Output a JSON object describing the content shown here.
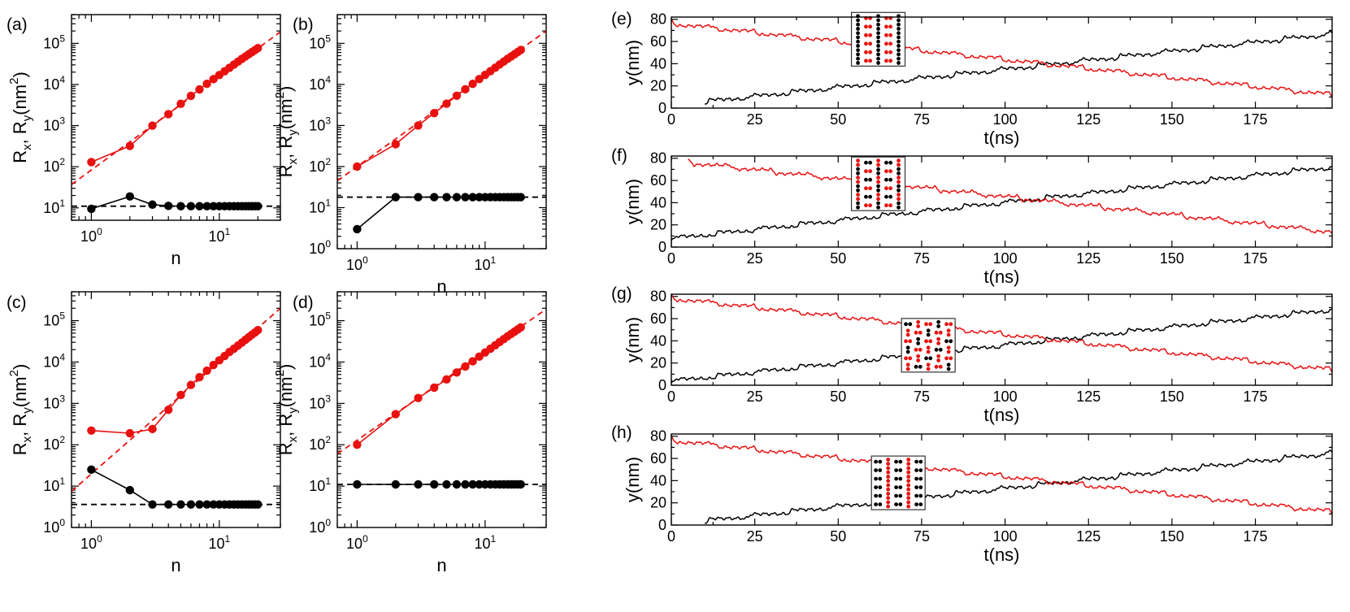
{
  "figure": {
    "colors": {
      "red": "#e8110f",
      "black": "#000000",
      "frame": "#000000"
    }
  },
  "chart_data": [
    {
      "id": "a",
      "tag": "(a)",
      "type": "line",
      "scale": "log-log",
      "xlabel": "n",
      "ylabel_main": "R",
      "ylabel_sub1": "x",
      "ylabel_sep": ", R",
      "ylabel_sub2": "y",
      "ylabel_unit": "(nm",
      "ylabel_exp": "2",
      "ylabel_close": ")",
      "xlim": [
        0.7,
        30
      ],
      "ylim": [
        5,
        500000
      ],
      "xticks": [
        {
          "value": 1,
          "base": "10",
          "exp": "0"
        },
        {
          "value": 10,
          "base": "10",
          "exp": "1"
        }
      ],
      "yticks": [
        {
          "value": 10,
          "base": "10",
          "exp": "1"
        },
        {
          "value": 100,
          "base": "10",
          "exp": "2"
        },
        {
          "value": 1000,
          "base": "10",
          "exp": "3"
        },
        {
          "value": 10000,
          "base": "10",
          "exp": "4"
        },
        {
          "value": 100000,
          "base": "10",
          "exp": "5"
        }
      ],
      "series": [
        {
          "name": "R_x",
          "color": "red",
          "x": [
            1,
            2,
            3,
            4,
            5,
            6,
            7,
            8,
            9,
            10,
            11,
            12,
            13,
            14,
            15,
            16,
            17,
            18,
            19,
            20
          ],
          "y": [
            130,
            320,
            1000,
            1900,
            3400,
            5300,
            7600,
            10400,
            13500,
            17000,
            21000,
            25500,
            30500,
            36000,
            42000,
            48000,
            54500,
            61500,
            69000,
            76500
          ]
        },
        {
          "name": "R_y",
          "color": "black",
          "x": [
            1,
            2,
            3,
            4,
            5,
            6,
            7,
            8,
            9,
            10,
            11,
            12,
            13,
            14,
            15,
            16,
            17,
            18,
            19,
            20
          ],
          "y": [
            9.5,
            19,
            12,
            11.2,
            11,
            11,
            11,
            11,
            11,
            11,
            11,
            11,
            11,
            11,
            11,
            11,
            11,
            11,
            11,
            11
          ]
        }
      ],
      "fits": [
        {
          "name": "fit-red",
          "color": "red",
          "x": [
            0.7,
            30
          ],
          "y": [
            37,
            190000
          ]
        },
        {
          "name": "fit-black",
          "color": "black",
          "x": [
            0.7,
            30
          ],
          "y": [
            11,
            11
          ]
        }
      ]
    },
    {
      "id": "b",
      "tag": "(b)",
      "type": "line",
      "scale": "log-log",
      "xlabel": "n",
      "ylabel_main": "R",
      "ylabel_sub1": "x",
      "ylabel_sep": ", R",
      "ylabel_sub2": "y",
      "ylabel_unit": "(nm",
      "ylabel_exp": "2",
      "ylabel_close": ")",
      "xlim": [
        0.7,
        30
      ],
      "ylim": [
        1,
        500000
      ],
      "xticks": [
        {
          "value": 1,
          "base": "10",
          "exp": "0"
        },
        {
          "value": 10,
          "base": "10",
          "exp": "1"
        }
      ],
      "yticks": [
        {
          "value": 1,
          "base": "10",
          "exp": "0"
        },
        {
          "value": 10,
          "base": "10",
          "exp": "1"
        },
        {
          "value": 100,
          "base": "10",
          "exp": "2"
        },
        {
          "value": 1000,
          "base": "10",
          "exp": "3"
        },
        {
          "value": 10000,
          "base": "10",
          "exp": "4"
        },
        {
          "value": 100000,
          "base": "10",
          "exp": "5"
        }
      ],
      "series": [
        {
          "name": "R_x",
          "color": "red",
          "x": [
            1,
            2,
            3,
            4,
            5,
            6,
            7,
            8,
            9,
            10,
            11,
            12,
            13,
            14,
            15,
            16,
            17,
            18,
            19
          ],
          "y": [
            100,
            350,
            1000,
            2000,
            3400,
            5300,
            7600,
            10300,
            13500,
            17000,
            21000,
            25500,
            30500,
            36000,
            42000,
            48000,
            54500,
            61500,
            69000
          ]
        },
        {
          "name": "R_y",
          "color": "black",
          "x": [
            1,
            2,
            3,
            4,
            5,
            6,
            7,
            8,
            9,
            10,
            11,
            12,
            13,
            14,
            15,
            16,
            17,
            18,
            19
          ],
          "y": [
            3,
            18,
            18,
            18,
            18,
            18,
            18,
            18,
            18,
            18,
            18,
            18,
            18,
            18,
            18,
            18,
            18,
            18,
            18
          ]
        }
      ],
      "fits": [
        {
          "name": "fit-red",
          "color": "red",
          "x": [
            0.7,
            30
          ],
          "y": [
            45,
            200000
          ]
        },
        {
          "name": "fit-black",
          "color": "black",
          "x": [
            0.7,
            30
          ],
          "y": [
            18,
            18
          ]
        }
      ]
    },
    {
      "id": "c",
      "tag": "(c)",
      "type": "line",
      "scale": "log-log",
      "xlabel": "n",
      "ylabel_main": "R",
      "ylabel_sub1": "x",
      "ylabel_sep": ", R",
      "ylabel_sub2": "y",
      "ylabel_unit": "(nm",
      "ylabel_exp": "2",
      "ylabel_close": ")",
      "xlim": [
        0.7,
        30
      ],
      "ylim": [
        1,
        500000
      ],
      "xticks": [
        {
          "value": 1,
          "base": "10",
          "exp": "0"
        },
        {
          "value": 10,
          "base": "10",
          "exp": "1"
        }
      ],
      "yticks": [
        {
          "value": 1,
          "base": "10",
          "exp": "0"
        },
        {
          "value": 10,
          "base": "10",
          "exp": "1"
        },
        {
          "value": 100,
          "base": "10",
          "exp": "2"
        },
        {
          "value": 1000,
          "base": "10",
          "exp": "3"
        },
        {
          "value": 10000,
          "base": "10",
          "exp": "4"
        },
        {
          "value": 100000,
          "base": "10",
          "exp": "5"
        }
      ],
      "series": [
        {
          "name": "R_x",
          "color": "red",
          "x": [
            1,
            2,
            3,
            4,
            5,
            6,
            7,
            8,
            9,
            10,
            11,
            12,
            13,
            14,
            15,
            16,
            17,
            18,
            19,
            20
          ],
          "y": [
            220,
            190,
            240,
            700,
            1600,
            2800,
            4300,
            6200,
            8500,
            11000,
            14000,
            17500,
            21000,
            25000,
            29500,
            34500,
            40000,
            46000,
            52000,
            59000
          ]
        },
        {
          "name": "R_y",
          "color": "black",
          "x": [
            1,
            2,
            3,
            4,
            5,
            6,
            7,
            8,
            9,
            10,
            11,
            12,
            13,
            14,
            15,
            16,
            17,
            18,
            19,
            20
          ],
          "y": [
            25,
            8,
            3.6,
            3.6,
            3.6,
            3.6,
            3.6,
            3.6,
            3.6,
            3.6,
            3.6,
            3.6,
            3.6,
            3.6,
            3.6,
            3.6,
            3.6,
            3.6,
            3.6,
            3.6
          ]
        }
      ],
      "fits": [
        {
          "name": "fit-red",
          "color": "red",
          "x": [
            0.7,
            30
          ],
          "y": [
            7.5,
            200000
          ]
        },
        {
          "name": "fit-black",
          "color": "black",
          "x": [
            0.7,
            30
          ],
          "y": [
            3.6,
            3.6
          ]
        }
      ]
    },
    {
      "id": "d",
      "tag": "(d)",
      "type": "line",
      "scale": "log-log",
      "xlabel": "n",
      "ylabel_main": "R",
      "ylabel_sub1": "x",
      "ylabel_sep": ", R",
      "ylabel_sub2": "y",
      "ylabel_unit": "(nm",
      "ylabel_exp": "2",
      "ylabel_close": ")",
      "xlim": [
        0.7,
        30
      ],
      "ylim": [
        1,
        500000
      ],
      "xticks": [
        {
          "value": 1,
          "base": "10",
          "exp": "0"
        },
        {
          "value": 10,
          "base": "10",
          "exp": "1"
        }
      ],
      "yticks": [
        {
          "value": 1,
          "base": "10",
          "exp": "0"
        },
        {
          "value": 10,
          "base": "10",
          "exp": "1"
        },
        {
          "value": 100,
          "base": "10",
          "exp": "2"
        },
        {
          "value": 1000,
          "base": "10",
          "exp": "3"
        },
        {
          "value": 10000,
          "base": "10",
          "exp": "4"
        },
        {
          "value": 100000,
          "base": "10",
          "exp": "5"
        }
      ],
      "series": [
        {
          "name": "R_x",
          "color": "red",
          "x": [
            1,
            2,
            3,
            4,
            5,
            6,
            7,
            8,
            9,
            10,
            11,
            12,
            13,
            14,
            15,
            16,
            17,
            18,
            19
          ],
          "y": [
            100,
            550,
            1350,
            2400,
            3800,
            5600,
            7800,
            10400,
            13500,
            17000,
            21000,
            25500,
            30500,
            36000,
            42000,
            48000,
            54500,
            61500,
            69000
          ]
        },
        {
          "name": "R_y",
          "color": "black",
          "x": [
            1,
            2,
            3,
            4,
            5,
            6,
            7,
            8,
            9,
            10,
            11,
            12,
            13,
            14,
            15,
            16,
            17,
            18,
            19
          ],
          "y": [
            11,
            11,
            11,
            11,
            11,
            11,
            11,
            11,
            11,
            11,
            11,
            11,
            11,
            11,
            11,
            11,
            11,
            11,
            11
          ]
        }
      ],
      "fits": [
        {
          "name": "fit-red",
          "color": "red",
          "x": [
            0.7,
            30
          ],
          "y": [
            60,
            190000
          ]
        },
        {
          "name": "fit-black",
          "color": "black",
          "x": [
            0.7,
            30
          ],
          "y": [
            11,
            11
          ]
        }
      ]
    },
    {
      "id": "e",
      "tag": "(e)",
      "type": "line",
      "scale": "linear",
      "xlabel": "t(ns)",
      "ylabel": "y(nm)",
      "xlim": [
        0,
        198
      ],
      "ylim": [
        0,
        82
      ],
      "xticks": [
        0,
        25,
        50,
        75,
        100,
        125,
        150,
        175
      ],
      "yticks": [
        0,
        20,
        40,
        60,
        80
      ],
      "trajectory": {
        "period": 82,
        "step": 4,
        "interval": 12.3,
        "rise": 2.0
      },
      "series": [
        {
          "name": "black-trajectory",
          "color": "black",
          "direction": 1,
          "offset": 4,
          "t_start": 10
        },
        {
          "name": "red-trajectory",
          "color": "red",
          "direction": -1,
          "offset": 78,
          "t_start": 0
        }
      ],
      "inset": {
        "pattern": "dimers-mixed-1",
        "t_center": 62,
        "y_center": 62
      }
    },
    {
      "id": "f",
      "tag": "(f)",
      "type": "line",
      "scale": "linear",
      "xlabel": "t(ns)",
      "ylabel": "y(nm)",
      "xlim": [
        0,
        198
      ],
      "ylim": [
        0,
        82
      ],
      "xticks": [
        0,
        25,
        50,
        75,
        100,
        125,
        150,
        175
      ],
      "yticks": [
        0,
        20,
        40,
        60,
        80
      ],
      "trajectory": {
        "period": 82,
        "step": 4,
        "interval": 12.3,
        "rise": 2.0
      },
      "series": [
        {
          "name": "black-trajectory",
          "color": "black",
          "direction": 1,
          "offset": 6,
          "t_start": 0
        },
        {
          "name": "red-trajectory",
          "color": "red",
          "direction": -1,
          "offset": 78,
          "t_start": 5
        }
      ],
      "inset": {
        "pattern": "dimers-mixed-2",
        "t_center": 62,
        "y_center": 57
      }
    },
    {
      "id": "g",
      "tag": "(g)",
      "type": "line",
      "scale": "linear",
      "xlabel": "t(ns)",
      "ylabel": "y(nm)",
      "xlim": [
        0,
        198
      ],
      "ylim": [
        0,
        82
      ],
      "xticks": [
        0,
        25,
        50,
        75,
        100,
        125,
        150,
        175
      ],
      "yticks": [
        0,
        20,
        40,
        60,
        80
      ],
      "trajectory": {
        "period": 82,
        "step": 4,
        "interval": 12.3,
        "rise": 2.0
      },
      "series": [
        {
          "name": "black-trajectory",
          "color": "black",
          "direction": 1,
          "offset": 2,
          "t_start": 0
        },
        {
          "name": "red-trajectory",
          "color": "red",
          "direction": -1,
          "offset": 80,
          "t_start": 0
        }
      ],
      "inset": {
        "pattern": "dimers-mixed-3",
        "t_center": 77,
        "y_center": 36
      }
    },
    {
      "id": "h",
      "tag": "(h)",
      "type": "line",
      "scale": "linear",
      "xlabel": "t(ns)",
      "ylabel": "y(nm)",
      "xlim": [
        0,
        198
      ],
      "ylim": [
        0,
        82
      ],
      "xticks": [
        0,
        25,
        50,
        75,
        100,
        125,
        150,
        175
      ],
      "yticks": [
        0,
        20,
        40,
        60,
        80
      ],
      "trajectory": {
        "period": 82,
        "step": 4,
        "interval": 12.3,
        "rise": 2.0
      },
      "series": [
        {
          "name": "black-trajectory",
          "color": "black",
          "direction": 1,
          "offset": 2,
          "t_start": 10
        },
        {
          "name": "red-trajectory",
          "color": "red",
          "direction": -1,
          "offset": 78,
          "t_start": 0
        }
      ],
      "inset": {
        "pattern": "dimers-checker",
        "t_center": 68,
        "y_center": 38
      }
    }
  ]
}
